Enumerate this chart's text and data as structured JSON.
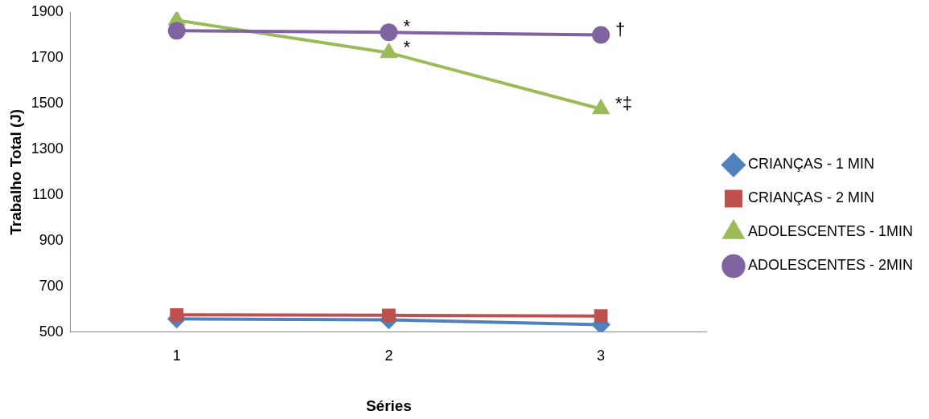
{
  "chart_data": {
    "type": "line",
    "xlabel": "Séries",
    "ylabel": "Trabalho Total (J)",
    "categories": [
      "1",
      "2",
      "3"
    ],
    "ylim": [
      500,
      1900
    ],
    "yticks": [
      500,
      700,
      900,
      1100,
      1300,
      1500,
      1700,
      1900
    ],
    "grid": false,
    "legend": "right",
    "series": [
      {
        "name": "CRIANÇAS - 1 MIN",
        "color": "#4f81bd",
        "marker": "diamond",
        "values": [
          557,
          553,
          532
        ]
      },
      {
        "name": "CRIANÇAS - 2 MIN",
        "color": "#c0504d",
        "marker": "square",
        "values": [
          575,
          573,
          570
        ]
      },
      {
        "name": "ADOLESCENTES - 1MIN",
        "color": "#9bbb59",
        "marker": "triangle",
        "values": [
          1864,
          1722,
          1476
        ]
      },
      {
        "name": "ADOLESCENTES - 2MIN",
        "color": "#8064a2",
        "marker": "circle",
        "values": [
          1818,
          1811,
          1800
        ]
      }
    ],
    "annotations": [
      {
        "text": "*",
        "x": "2",
        "y": 1811
      },
      {
        "text": "*",
        "x": "2",
        "y": 1722
      },
      {
        "text": "†",
        "x": "3",
        "y": 1800
      },
      {
        "text": "*‡",
        "x": "3",
        "y": 1476
      }
    ]
  }
}
